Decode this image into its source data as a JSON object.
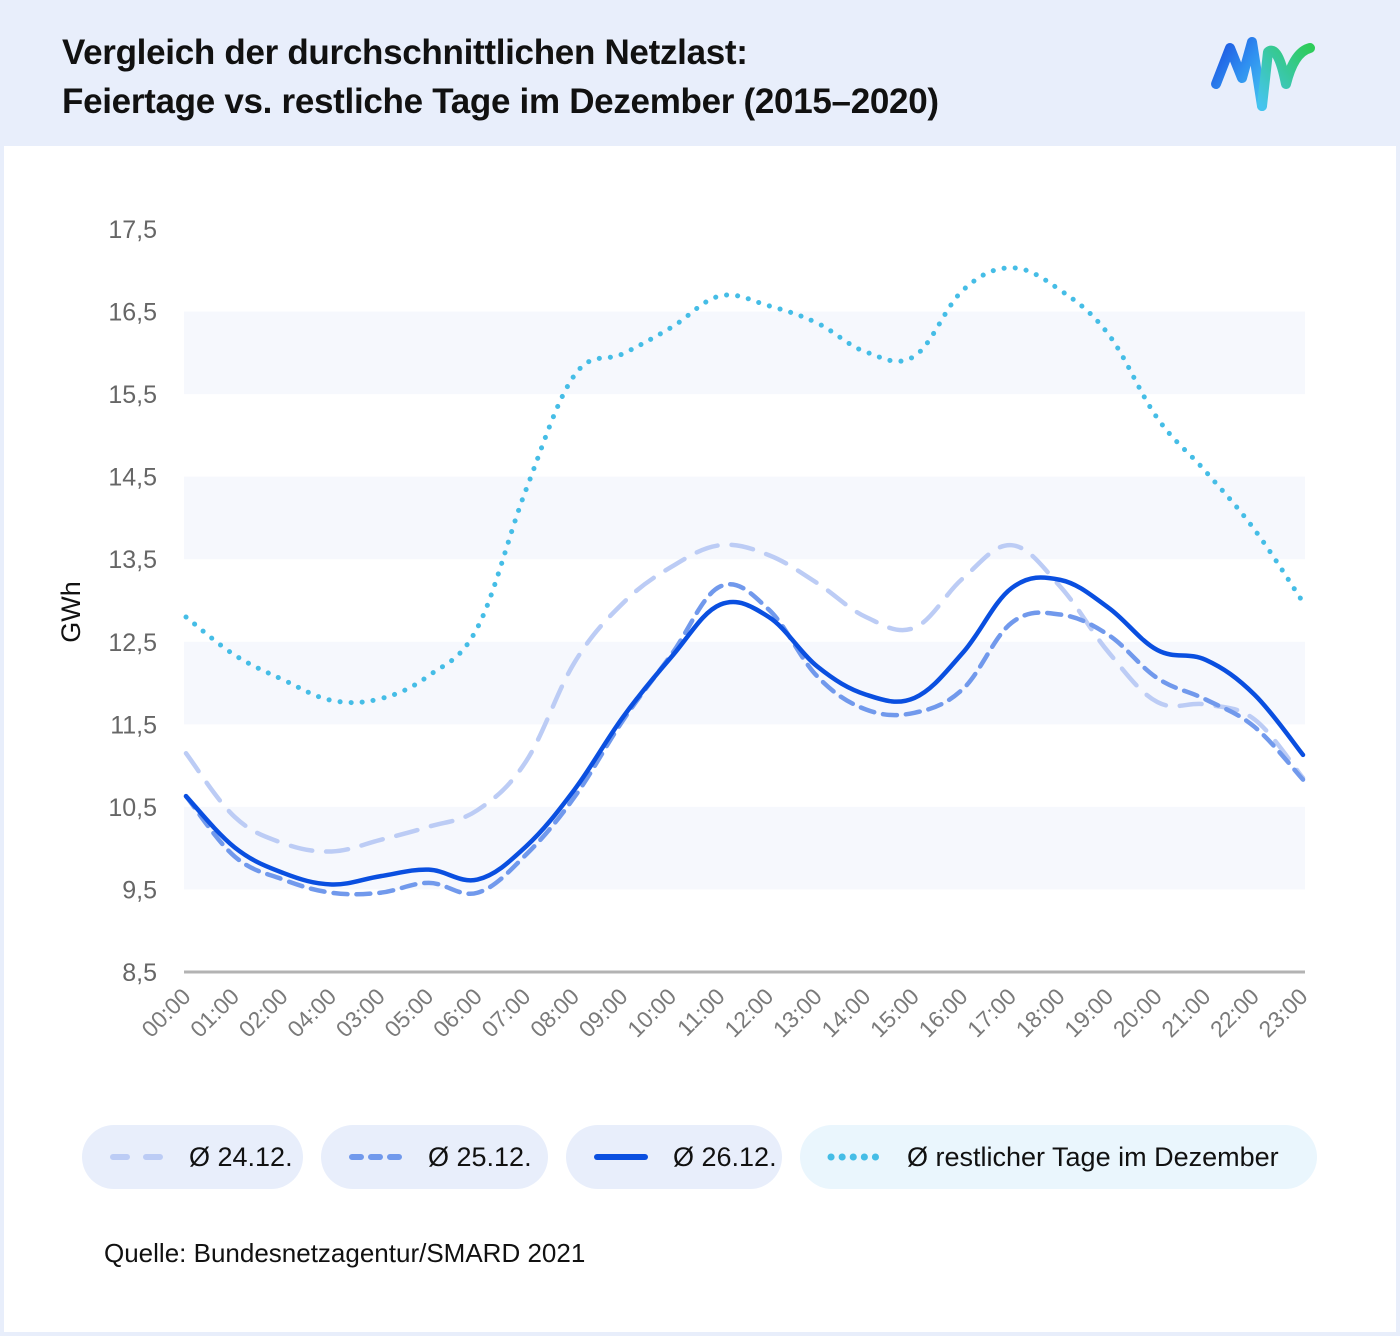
{
  "header": {
    "title_line1": "Vergleich der durchschnittlichen Netzlast:",
    "title_line2": "Feiertage vs. restliche Tage im Dezember (2015–2020)",
    "logo": "mw-wave-logo"
  },
  "colors": {
    "header_bg": "#e8eefb",
    "card_bg": "#ffffff",
    "band": "#f6f8fd",
    "axis": "#b3b3b3",
    "s2412": "#bcccf5",
    "s2512": "#7199ec",
    "s2612": "#0a4fe0",
    "rest": "#45bde6",
    "logo_blue": "#1a4fe0",
    "logo_green": "#2ecc5a",
    "logo_cyan": "#45c4ef"
  },
  "legend": [
    {
      "key": "s2412",
      "label": "Ø 24.12.",
      "style": "dashed-light"
    },
    {
      "key": "s2512",
      "label": "Ø 25.12.",
      "style": "dashed"
    },
    {
      "key": "s2612",
      "label": "Ø 26.12.",
      "style": "solid"
    },
    {
      "key": "rest",
      "label": "Ø restlicher Tage im Dezember",
      "style": "dotted"
    }
  ],
  "source": "Quelle: Bundesnetzagentur/SMARD 2021",
  "chart_data": {
    "type": "line",
    "title": "Vergleich der durchschnittlichen Netzlast: Feiertage vs. restliche Tage im Dezember (2015–2020)",
    "xlabel": "",
    "ylabel": "GWh",
    "x": [
      "00:00",
      "01:00",
      "02:00",
      "04:00",
      "03:00",
      "05:00",
      "06:00",
      "07:00",
      "08:00",
      "09:00",
      "10:00",
      "11:00",
      "12:00",
      "13:00",
      "14:00",
      "15:00",
      "16:00",
      "17:00",
      "18:00",
      "19:00",
      "20:00",
      "21:00",
      "22:00",
      "23:00"
    ],
    "y_ticks": [
      "17,5",
      "16,5",
      "15,5",
      "14,5",
      "13,5",
      "12,5",
      "11,5",
      "10,5",
      "9,5",
      "8,5"
    ],
    "y_tick_values": [
      17.5,
      16.5,
      15.5,
      14.5,
      13.5,
      12.5,
      11.5,
      10.5,
      9.5,
      8.5
    ],
    "ylim": [
      8.5,
      17.5
    ],
    "grid": "alternating horizontal bands",
    "legend_position": "bottom",
    "series": [
      {
        "key": "s2412",
        "name": "Ø 24.12.",
        "values": [
          11.15,
          10.38,
          10.06,
          9.96,
          10.1,
          10.26,
          10.46,
          11.05,
          12.25,
          12.97,
          13.41,
          13.67,
          13.55,
          13.21,
          12.8,
          12.67,
          13.27,
          13.67,
          13.17,
          12.37,
          11.77,
          11.74,
          11.56,
          10.85
        ]
      },
      {
        "key": "s2512",
        "name": "Ø 25.12.",
        "values": [
          10.63,
          9.9,
          9.62,
          9.46,
          9.46,
          9.58,
          9.46,
          9.92,
          10.62,
          11.55,
          12.35,
          13.17,
          12.89,
          12.08,
          11.68,
          11.64,
          11.93,
          12.73,
          12.83,
          12.58,
          12.06,
          11.8,
          11.47,
          10.83
        ]
      },
      {
        "key": "s2612",
        "name": "Ø 26.12.",
        "values": [
          10.63,
          10.01,
          9.7,
          9.56,
          9.66,
          9.74,
          9.62,
          10.02,
          10.71,
          11.59,
          12.32,
          12.95,
          12.8,
          12.2,
          11.86,
          11.82,
          12.37,
          13.15,
          13.25,
          12.91,
          12.4,
          12.28,
          11.86,
          11.13
        ]
      },
      {
        "key": "rest",
        "name": "Ø restlicher Tage im Dezember",
        "values": [
          12.8,
          12.34,
          12.04,
          11.79,
          11.81,
          12.09,
          12.67,
          14.34,
          15.73,
          15.99,
          16.31,
          16.69,
          16.57,
          16.36,
          16.01,
          15.96,
          16.76,
          17.03,
          16.76,
          16.22,
          15.21,
          14.56,
          13.86,
          12.98
        ]
      }
    ]
  }
}
